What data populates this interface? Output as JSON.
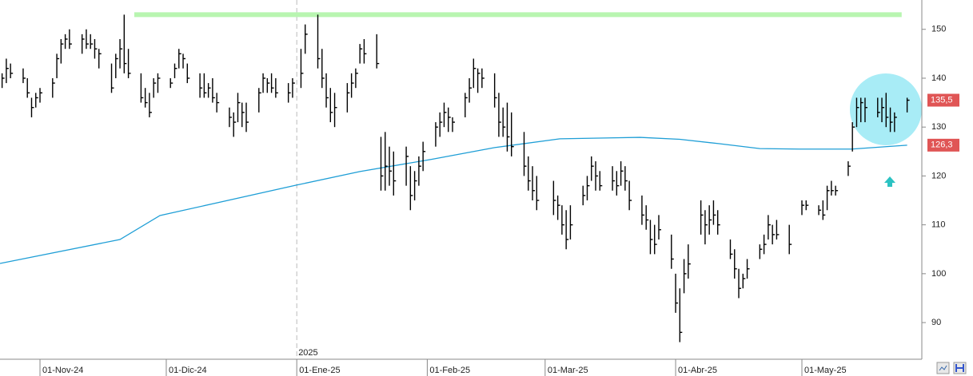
{
  "chart_data": {
    "type": "ohlc",
    "xlim": [
      -9.5,
      209.3
    ],
    "ylim": [
      82.5,
      156
    ],
    "yticks": [
      90,
      100,
      110,
      120,
      130,
      140,
      150
    ],
    "xticks": [
      {
        "value": 0,
        "label": "01-Nov-24"
      },
      {
        "value": 30,
        "label": "01-Dic-24"
      },
      {
        "value": 61,
        "label": "01-Ene-25"
      },
      {
        "value": 92,
        "label": "01-Feb-25"
      },
      {
        "value": 120,
        "label": "01-Mar-25"
      },
      {
        "value": 151,
        "label": "01-Abr-25"
      },
      {
        "value": 181,
        "label": "01-May-25"
      }
    ],
    "year_marker": {
      "value": 61,
      "label": "2025"
    },
    "grid": true,
    "bar_color": "#000000",
    "bars": [
      {
        "x": -9,
        "high": 141,
        "low": 138,
        "close": 140
      },
      {
        "x": -8,
        "high": 144,
        "low": 139,
        "close": 142
      },
      {
        "x": -7,
        "high": 143,
        "low": 140,
        "close": 141
      },
      {
        "x": -4,
        "high": 142,
        "low": 139,
        "close": 140
      },
      {
        "x": -3,
        "high": 140,
        "low": 136,
        "close": 137
      },
      {
        "x": -2,
        "high": 136,
        "low": 132,
        "close": 134
      },
      {
        "x": -1,
        "high": 137,
        "low": 134,
        "close": 136
      },
      {
        "x": 0,
        "high": 138,
        "low": 135,
        "close": 137
      },
      {
        "x": 3,
        "high": 140,
        "low": 136,
        "close": 139
      },
      {
        "x": 4,
        "high": 145,
        "low": 140,
        "close": 144
      },
      {
        "x": 5,
        "high": 148,
        "low": 143,
        "close": 147
      },
      {
        "x": 6,
        "high": 149,
        "low": 146,
        "close": 148
      },
      {
        "x": 7,
        "high": 150,
        "low": 146,
        "close": 147
      },
      {
        "x": 10,
        "high": 149,
        "low": 145,
        "close": 148
      },
      {
        "x": 11,
        "high": 150,
        "low": 146,
        "close": 147
      },
      {
        "x": 12,
        "high": 149,
        "low": 146,
        "close": 147
      },
      {
        "x": 13,
        "high": 148,
        "low": 144,
        "close": 146
      },
      {
        "x": 14,
        "high": 146,
        "low": 142,
        "close": 145
      },
      {
        "x": 17,
        "high": 143,
        "low": 137,
        "close": 138
      },
      {
        "x": 18,
        "high": 145,
        "low": 140,
        "close": 144
      },
      {
        "x": 19,
        "high": 148,
        "low": 142,
        "close": 146
      },
      {
        "x": 20,
        "high": 153,
        "low": 141,
        "close": 143
      },
      {
        "x": 21,
        "high": 146,
        "low": 140,
        "close": 141
      },
      {
        "x": 24,
        "high": 141,
        "low": 135,
        "close": 136
      },
      {
        "x": 25,
        "high": 138,
        "low": 134,
        "close": 135
      },
      {
        "x": 26,
        "high": 137,
        "low": 132,
        "close": 133
      },
      {
        "x": 27,
        "high": 140,
        "low": 136,
        "close": 139
      },
      {
        "x": 28,
        "high": 141,
        "low": 137,
        "close": 140
      },
      {
        "x": 31,
        "high": 140,
        "low": 138,
        "close": 139
      },
      {
        "x": 32,
        "high": 143,
        "low": 140,
        "close": 142
      },
      {
        "x": 33,
        "high": 146,
        "low": 142,
        "close": 145
      },
      {
        "x": 34,
        "high": 145,
        "low": 142,
        "close": 144
      },
      {
        "x": 35,
        "high": 143,
        "low": 139,
        "close": 140
      },
      {
        "x": 38,
        "high": 141,
        "low": 136,
        "close": 138
      },
      {
        "x": 39,
        "high": 141,
        "low": 136,
        "close": 137
      },
      {
        "x": 40,
        "high": 139,
        "low": 136,
        "close": 138
      },
      {
        "x": 41,
        "high": 140,
        "low": 135,
        "close": 136
      },
      {
        "x": 42,
        "high": 137,
        "low": 133,
        "close": 135
      },
      {
        "x": 45,
        "high": 134,
        "low": 130,
        "close": 132
      },
      {
        "x": 46,
        "high": 133,
        "low": 128,
        "close": 131
      },
      {
        "x": 47,
        "high": 137,
        "low": 131,
        "close": 135
      },
      {
        "x": 48,
        "high": 135,
        "low": 130,
        "close": 133
      },
      {
        "x": 49,
        "high": 135,
        "low": 129,
        "close": 131
      },
      {
        "x": 52,
        "high": 138,
        "low": 133,
        "close": 137
      },
      {
        "x": 53,
        "high": 141,
        "low": 137,
        "close": 140
      },
      {
        "x": 54,
        "high": 140,
        "low": 137,
        "close": 139
      },
      {
        "x": 55,
        "high": 141,
        "low": 137,
        "close": 138
      },
      {
        "x": 56,
        "high": 140,
        "low": 136,
        "close": 137
      },
      {
        "x": 59,
        "high": 139,
        "low": 135,
        "close": 137
      },
      {
        "x": 60,
        "high": 140,
        "low": 136,
        "close": 139
      },
      {
        "x": 62,
        "high": 146,
        "low": 138,
        "close": 141
      },
      {
        "x": 63,
        "high": 151,
        "low": 145,
        "close": 149
      },
      {
        "x": 66,
        "high": 153,
        "low": 142,
        "close": 144
      },
      {
        "x": 67,
        "high": 146,
        "low": 138,
        "close": 140
      },
      {
        "x": 68,
        "high": 141,
        "low": 134,
        "close": 136
      },
      {
        "x": 69,
        "high": 138,
        "low": 131,
        "close": 133
      },
      {
        "x": 70,
        "high": 137,
        "low": 130,
        "close": 134
      },
      {
        "x": 73,
        "high": 139,
        "low": 133,
        "close": 137
      },
      {
        "x": 74,
        "high": 141,
        "low": 136,
        "close": 139
      },
      {
        "x": 75,
        "high": 142,
        "low": 138,
        "close": 141
      },
      {
        "x": 76,
        "high": 147,
        "low": 143,
        "close": 146
      },
      {
        "x": 77,
        "high": 148,
        "low": 143,
        "close": 145
      },
      {
        "x": 80,
        "high": 149,
        "low": 142,
        "close": 143
      },
      {
        "x": 81,
        "high": 128,
        "low": 117,
        "close": 120
      },
      {
        "x": 82,
        "high": 129,
        "low": 117,
        "close": 122
      },
      {
        "x": 83,
        "high": 126,
        "low": 118,
        "close": 121
      },
      {
        "x": 84,
        "high": 125,
        "low": 116,
        "close": 119
      },
      {
        "x": 87,
        "high": 126,
        "low": 118,
        "close": 124
      },
      {
        "x": 88,
        "high": 122,
        "low": 113,
        "close": 116
      },
      {
        "x": 89,
        "high": 121,
        "low": 115,
        "close": 119
      },
      {
        "x": 90,
        "high": 124,
        "low": 118,
        "close": 122
      },
      {
        "x": 91,
        "high": 127,
        "low": 121,
        "close": 125
      },
      {
        "x": 94,
        "high": 131,
        "low": 126,
        "close": 130
      },
      {
        "x": 95,
        "high": 133,
        "low": 128,
        "close": 131
      },
      {
        "x": 96,
        "high": 135,
        "low": 130,
        "close": 133
      },
      {
        "x": 97,
        "high": 134,
        "low": 129,
        "close": 132
      },
      {
        "x": 98,
        "high": 132,
        "low": 129,
        "close": 131
      },
      {
        "x": 101,
        "high": 137,
        "low": 132,
        "close": 136
      },
      {
        "x": 102,
        "high": 140,
        "low": 135,
        "close": 138
      },
      {
        "x": 103,
        "high": 144,
        "low": 138,
        "close": 142
      },
      {
        "x": 104,
        "high": 142,
        "low": 137,
        "close": 141
      },
      {
        "x": 105,
        "high": 142,
        "low": 138,
        "close": 140
      },
      {
        "x": 108,
        "high": 141,
        "low": 134,
        "close": 136
      },
      {
        "x": 109,
        "high": 137,
        "low": 128,
        "close": 131
      },
      {
        "x": 110,
        "high": 134,
        "low": 128,
        "close": 130
      },
      {
        "x": 111,
        "high": 135,
        "low": 125,
        "close": 128
      },
      {
        "x": 112,
        "high": 133,
        "low": 124,
        "close": 126
      },
      {
        "x": 115,
        "high": 129,
        "low": 120,
        "close": 122
      },
      {
        "x": 116,
        "high": 124,
        "low": 117,
        "close": 119
      },
      {
        "x": 117,
        "high": 122,
        "low": 115,
        "close": 117
      },
      {
        "x": 118,
        "high": 120,
        "low": 113,
        "close": 115
      },
      {
        "x": 122,
        "high": 119,
        "low": 112,
        "close": 115
      },
      {
        "x": 123,
        "high": 116,
        "low": 111,
        "close": 114
      },
      {
        "x": 124,
        "high": 114,
        "low": 108,
        "close": 110
      },
      {
        "x": 125,
        "high": 113,
        "low": 105,
        "close": 107
      },
      {
        "x": 126,
        "high": 114,
        "low": 107,
        "close": 110
      },
      {
        "x": 129,
        "high": 118,
        "low": 114,
        "close": 116
      },
      {
        "x": 130,
        "high": 120,
        "low": 115,
        "close": 118
      },
      {
        "x": 131,
        "high": 124,
        "low": 119,
        "close": 122
      },
      {
        "x": 132,
        "high": 123,
        "low": 117,
        "close": 120
      },
      {
        "x": 133,
        "high": 121,
        "low": 117,
        "close": 118
      },
      {
        "x": 136,
        "high": 122,
        "low": 117,
        "close": 119
      },
      {
        "x": 137,
        "high": 121,
        "low": 116,
        "close": 118
      },
      {
        "x": 138,
        "high": 123,
        "low": 118,
        "close": 121
      },
      {
        "x": 139,
        "high": 122,
        "low": 117,
        "close": 119
      },
      {
        "x": 140,
        "high": 119,
        "low": 113,
        "close": 115
      },
      {
        "x": 143,
        "high": 116,
        "low": 110,
        "close": 112
      },
      {
        "x": 144,
        "high": 114,
        "low": 109,
        "close": 111
      },
      {
        "x": 145,
        "high": 111,
        "low": 104,
        "close": 107
      },
      {
        "x": 146,
        "high": 110,
        "low": 104,
        "close": 106
      },
      {
        "x": 147,
        "high": 112,
        "low": 107,
        "close": 109
      },
      {
        "x": 150,
        "high": 108,
        "low": 101,
        "close": 103
      },
      {
        "x": 151,
        "high": 100,
        "low": 92,
        "close": 94
      },
      {
        "x": 152,
        "high": 97,
        "low": 86,
        "close": 88
      },
      {
        "x": 153,
        "high": 103,
        "low": 96,
        "close": 100
      },
      {
        "x": 154,
        "high": 106,
        "low": 99,
        "close": 102
      },
      {
        "x": 157,
        "high": 115,
        "low": 108,
        "close": 112
      },
      {
        "x": 158,
        "high": 113,
        "low": 106,
        "close": 110
      },
      {
        "x": 159,
        "high": 114,
        "low": 108,
        "close": 111
      },
      {
        "x": 160,
        "high": 115,
        "low": 110,
        "close": 112
      },
      {
        "x": 161,
        "high": 113,
        "low": 108,
        "close": 110
      },
      {
        "x": 164,
        "high": 107,
        "low": 103,
        "close": 104
      },
      {
        "x": 165,
        "high": 105,
        "low": 99,
        "close": 101
      },
      {
        "x": 166,
        "high": 101,
        "low": 95,
        "close": 97
      },
      {
        "x": 167,
        "high": 100,
        "low": 97,
        "close": 99
      },
      {
        "x": 168,
        "high": 103,
        "low": 99,
        "close": 101
      },
      {
        "x": 171,
        "high": 106,
        "low": 103,
        "close": 105
      },
      {
        "x": 172,
        "high": 108,
        "low": 104,
        "close": 106
      },
      {
        "x": 173,
        "high": 112,
        "low": 107,
        "close": 110
      },
      {
        "x": 174,
        "high": 110,
        "low": 106,
        "close": 108
      },
      {
        "x": 175,
        "high": 111,
        "low": 107,
        "close": 108
      },
      {
        "x": 178,
        "high": 110,
        "low": 104,
        "close": 106
      },
      {
        "x": 181,
        "high": 115,
        "low": 112,
        "close": 114
      },
      {
        "x": 182,
        "high": 115,
        "low": 113,
        "close": 114
      },
      {
        "x": 185,
        "high": 114,
        "low": 112,
        "close": 113
      },
      {
        "x": 186,
        "high": 115,
        "low": 111,
        "close": 112
      },
      {
        "x": 187,
        "high": 118,
        "low": 113,
        "close": 117
      },
      {
        "x": 188,
        "high": 119,
        "low": 116,
        "close": 117
      },
      {
        "x": 189,
        "high": 118,
        "low": 116,
        "close": 117
      },
      {
        "x": 192,
        "high": 123,
        "low": 120,
        "close": 122
      },
      {
        "x": 193,
        "high": 131,
        "low": 125,
        "close": 130
      },
      {
        "x": 194,
        "high": 136,
        "low": 130,
        "close": 134
      },
      {
        "x": 195,
        "high": 136,
        "low": 131,
        "close": 135
      },
      {
        "x": 196,
        "high": 136,
        "low": 131,
        "close": 134
      },
      {
        "x": 199,
        "high": 136,
        "low": 132,
        "close": 133
      },
      {
        "x": 200,
        "high": 136,
        "low": 131,
        "close": 134
      },
      {
        "x": 201,
        "high": 137,
        "low": 130,
        "close": 132
      },
      {
        "x": 202,
        "high": 134,
        "low": 129,
        "close": 131
      },
      {
        "x": 203,
        "high": 133,
        "low": 129,
        "close": 132
      },
      {
        "x": 206,
        "high": 136,
        "low": 133,
        "close": 135.5
      }
    ],
    "average": {
      "color": "#1e9ed6",
      "x": [
        -9.5,
        19,
        28.5,
        60.8,
        76,
        93,
        108,
        123.5,
        142.5,
        152,
        161.4,
        171,
        180.4,
        192.8,
        206
      ],
      "values": [
        102.1,
        107,
        111.9,
        118.1,
        120.9,
        123.4,
        125.8,
        127.6,
        127.9,
        127.5,
        126.6,
        125.6,
        125.5,
        125.5,
        126.3
      ]
    },
    "resistance": {
      "color": "#b8f5b0",
      "value": 153,
      "x": [
        22.4,
        204.7
      ]
    },
    "price_labels": [
      {
        "value": 135.5,
        "label": "135,5"
      },
      {
        "value": 126.3,
        "label": "126,3"
      }
    ]
  }
}
